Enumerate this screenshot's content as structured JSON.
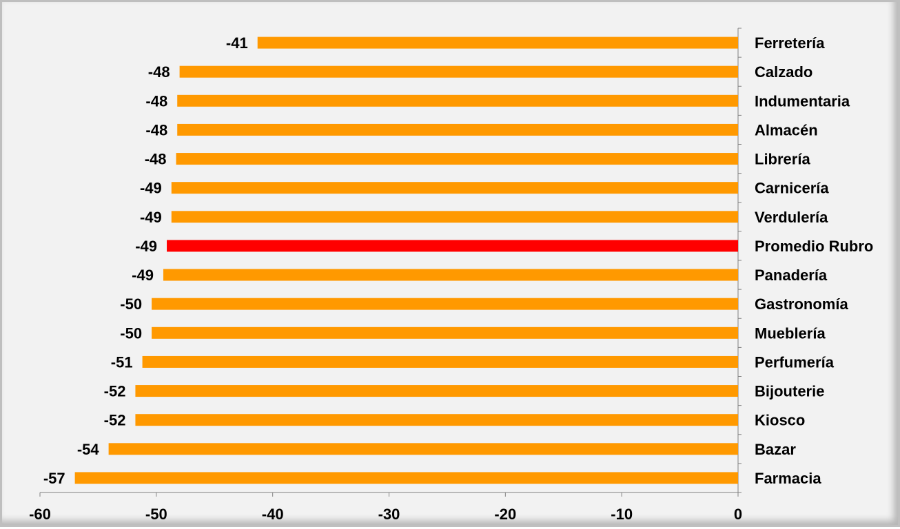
{
  "chart_data": {
    "type": "bar",
    "orientation": "horizontal",
    "title": "",
    "xlabel": "",
    "ylabel": "",
    "categories": [
      "Ferretería",
      "Calzado",
      "Indumentaria",
      "Almacén",
      "Librería",
      "Carnicería",
      "Verdulería",
      "Promedio Rubro",
      "Panadería",
      "Gastronomía",
      "Mueblería",
      "Perfumería",
      "Bijouterie",
      "Kiosco",
      "Bazar",
      "Farmacia"
    ],
    "values": [
      -41.3,
      -48.0,
      -48.2,
      -48.2,
      -48.3,
      -48.7,
      -48.7,
      -49.1,
      -49.4,
      -50.4,
      -50.4,
      -51.2,
      -51.8,
      -51.8,
      -54.1,
      -57.0
    ],
    "value_labels": [
      "-41",
      "-48",
      "-48",
      "-48",
      "-48",
      "-49",
      "-49",
      "-49",
      "-49",
      "-50",
      "-50",
      "-51",
      "-52",
      "-52",
      "-54",
      "-57"
    ],
    "highlight_category": "Promedio Rubro",
    "xlim": [
      -60,
      0
    ],
    "xticks": [
      -60,
      -50,
      -40,
      -30,
      -20,
      -10,
      0
    ],
    "xtick_labels": [
      "-60",
      "-50",
      "-40",
      "-30",
      "-20",
      "-10",
      "0"
    ],
    "grid": false,
    "legend": "none",
    "colors": {
      "bar": "#ff9900",
      "highlight": "#ff0000",
      "background": "#f2f2f2",
      "axis": "#808080"
    }
  }
}
